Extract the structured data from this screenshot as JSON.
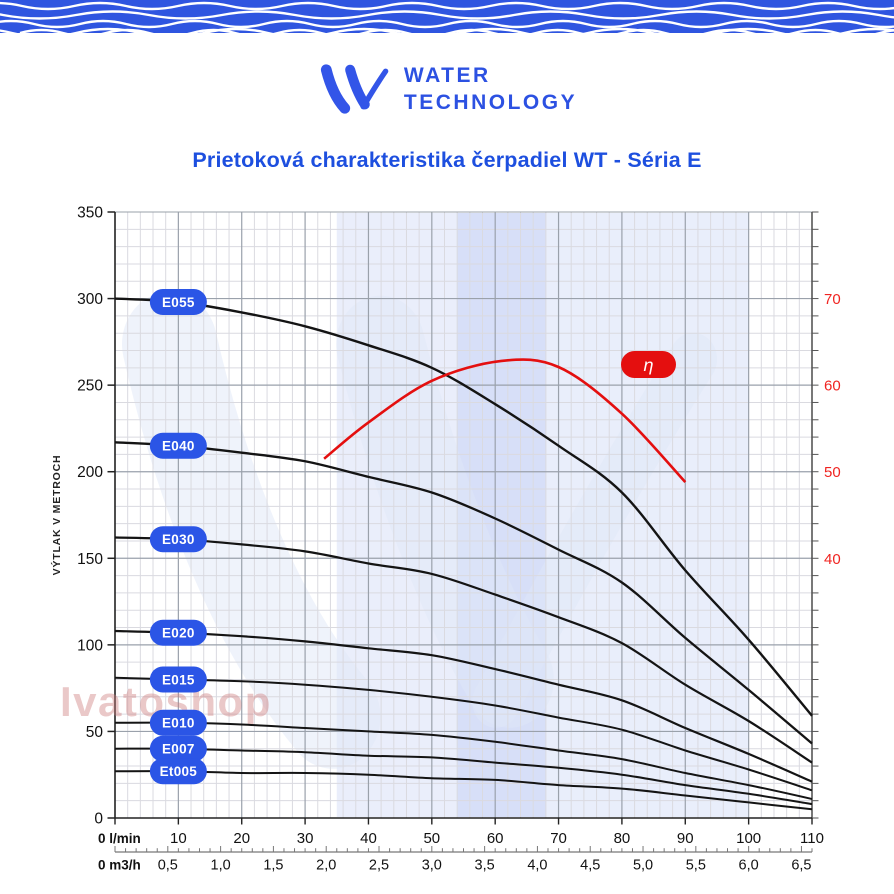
{
  "header": {
    "wave_color": "#2f55e0",
    "brand": {
      "line1": "WATER",
      "line2": "TECHNOLOGY",
      "color": "#2c51e2"
    }
  },
  "title": {
    "text": "Prietoková charakteristika čerpadiel WT - Séria E",
    "color": "#1d4fdf"
  },
  "watermark": {
    "text": "Ivatoshop",
    "color": "rgba(205,125,125,0.42)"
  },
  "chart_data": {
    "type": "line",
    "title": "Prietoková charakteristika čerpadiel WT - Séria E",
    "grid": true,
    "x_axis": {
      "primary": {
        "unit_label": "0 l/min",
        "ticks": [
          10,
          20,
          30,
          40,
          50,
          60,
          70,
          80,
          90,
          100,
          110
        ],
        "range": [
          0,
          110
        ]
      },
      "secondary": {
        "unit_label": "0 m3/h",
        "tick_labels": [
          "0,5",
          "1,0",
          "1,5",
          "2,0",
          "2,5",
          "3,0",
          "3,5",
          "4,0",
          "4,5",
          "5,0",
          "5,5",
          "6,0",
          "6,5"
        ],
        "tick_values": [
          0.5,
          1.0,
          1.5,
          2.0,
          2.5,
          3.0,
          3.5,
          4.0,
          4.5,
          5.0,
          5.5,
          6.0,
          6.5
        ]
      }
    },
    "y_axis_left": {
      "label": "VÝTLAK V METROCH",
      "ticks": [
        350,
        300,
        250,
        200,
        150,
        100,
        50,
        0
      ],
      "range": [
        0,
        350
      ]
    },
    "y_axis_right": {
      "ticks": [
        70,
        60,
        50,
        40
      ],
      "color": "#f02421",
      "range_shown": [
        40,
        70
      ]
    },
    "q_lmin": [
      0,
      10,
      20,
      30,
      40,
      50,
      60,
      70,
      80,
      90,
      100,
      110
    ],
    "series": [
      {
        "name": "E055",
        "h_m": [
          300,
          298,
          292,
          284,
          273,
          260,
          239,
          215,
          188,
          143,
          103,
          59
        ]
      },
      {
        "name": "E040",
        "h_m": [
          217,
          215,
          211,
          206,
          197,
          188,
          173,
          155,
          136,
          104,
          74,
          43
        ]
      },
      {
        "name": "E030",
        "h_m": [
          162,
          161,
          158,
          154,
          147,
          141,
          129,
          116,
          101,
          77,
          56,
          32
        ]
      },
      {
        "name": "E020",
        "h_m": [
          108,
          107,
          105,
          102,
          98,
          94,
          86,
          77,
          68,
          52,
          37,
          21
        ]
      },
      {
        "name": "E015",
        "h_m": [
          81,
          80,
          79,
          77,
          74,
          70,
          65,
          58,
          51,
          39,
          28,
          16
        ]
      },
      {
        "name": "E010",
        "h_m": [
          55,
          55,
          54,
          52,
          50,
          48,
          44,
          39,
          34,
          26,
          19,
          11
        ]
      },
      {
        "name": "E007",
        "h_m": [
          40,
          40,
          39,
          38,
          36,
          35,
          32,
          29,
          25,
          19,
          14,
          8
        ]
      },
      {
        "name": "Et005",
        "h_m": [
          27,
          27,
          26,
          26,
          25,
          23,
          22,
          19,
          17,
          13,
          9,
          5
        ]
      }
    ],
    "series_color": "#141414",
    "series_label_color": "#2b55e6",
    "efficiency_curve": {
      "label": "η",
      "color": "#e40f0f",
      "points_q_eta": [
        [
          33,
          51.5
        ],
        [
          40,
          55.7
        ],
        [
          50,
          60.5
        ],
        [
          61,
          62.8
        ],
        [
          70,
          62.1
        ],
        [
          80,
          56.7
        ],
        [
          90,
          48.8
        ]
      ]
    },
    "highlight_bands_lmin": [
      {
        "from": 35,
        "to": 54,
        "color": "#eaeefb"
      },
      {
        "from": 54,
        "to": 68,
        "color": "#d7dff8"
      },
      {
        "from": 68,
        "to": 100,
        "color": "#e9eefb"
      }
    ]
  }
}
